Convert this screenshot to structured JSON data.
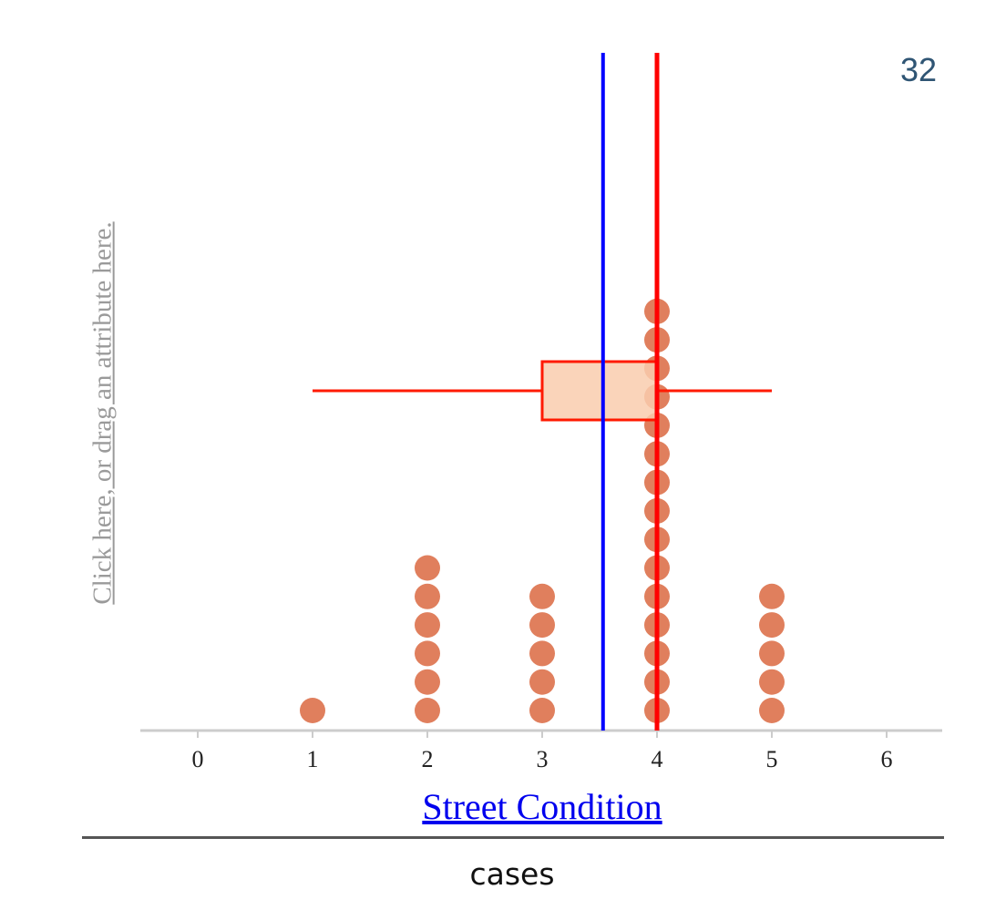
{
  "count_label": "32",
  "y_axis": {
    "prompt": "Click here, or drag an attribute here."
  },
  "x_axis": {
    "attribute": "Street Condition"
  },
  "context": {
    "label": "cases"
  },
  "colors": {
    "dot": "#e07f5d",
    "box_fill": "#f9cdae",
    "box_stroke": "#ff1a00",
    "mean_line": "#0000ff",
    "median_line": "#ff0000",
    "axis": "#cccccc",
    "tick_text": "#222222"
  },
  "chart_data": {
    "type": "dot-plot",
    "xlabel": "Street Condition",
    "ylabel": "",
    "xlim": [
      -0.5,
      6.5
    ],
    "ticks": [
      0,
      1,
      2,
      3,
      4,
      5,
      6
    ],
    "tick_labels": [
      "0",
      "1",
      "2",
      "3",
      "4",
      "5",
      "6"
    ],
    "frequencies": [
      {
        "value": 1,
        "count": 1
      },
      {
        "value": 2,
        "count": 6
      },
      {
        "value": 3,
        "count": 5
      },
      {
        "value": 4,
        "count": 15
      },
      {
        "value": 5,
        "count": 5
      }
    ],
    "n": 32,
    "box_plot": {
      "min": 1,
      "q1": 3,
      "median": 4,
      "q3": 4,
      "max": 5
    },
    "mean": 3.53
  }
}
